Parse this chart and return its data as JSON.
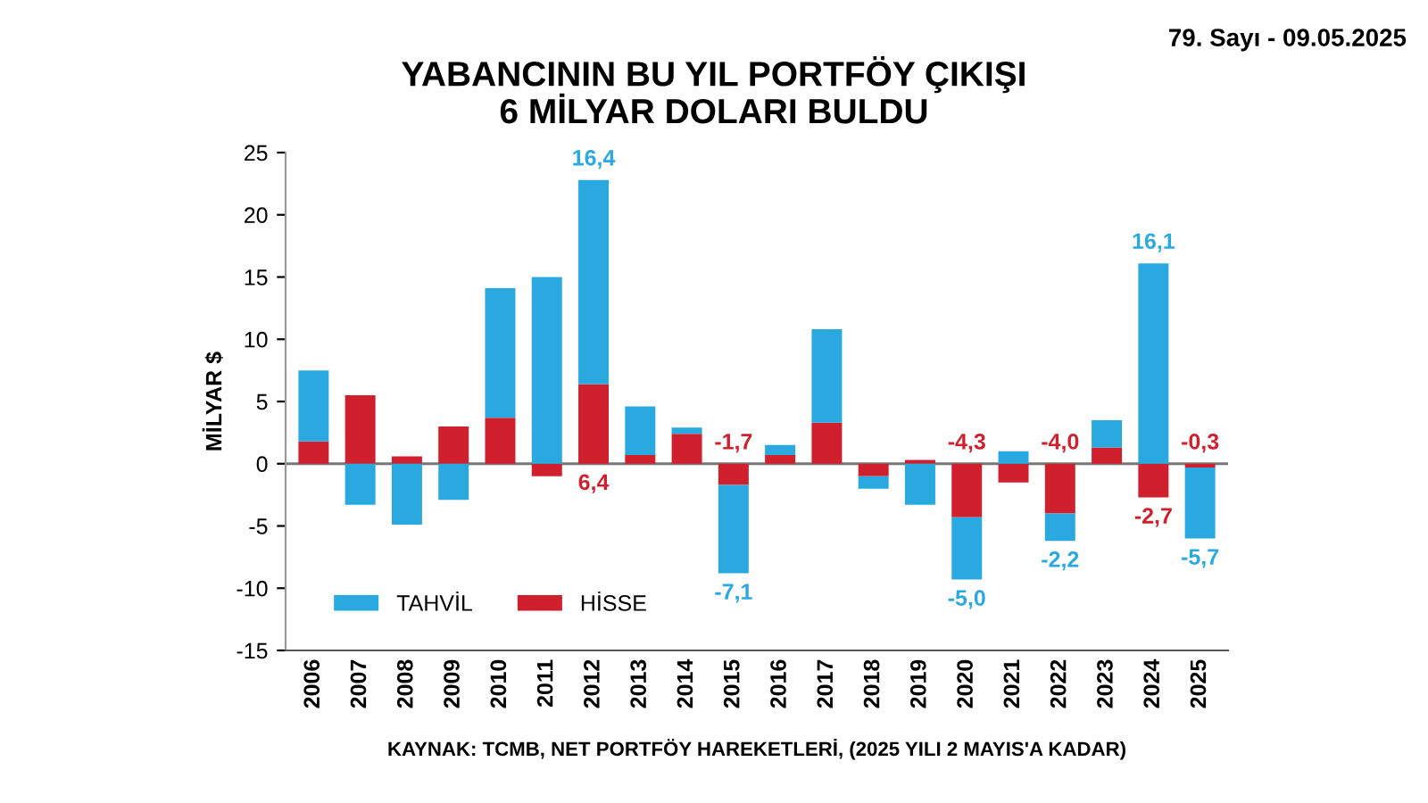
{
  "chart_data": {
    "type": "bar",
    "stacked": true,
    "title": "YABANCININ BU YIL PORTFÖY ÇIKIŞI\n6 MİLYAR DOLARI BULDU",
    "ylabel": "MİLYAR $",
    "annotations": [
      "79. Sayı - 09.05.2025",
      "KAYNAK: TCMB, NET PORTFÖY HAREKETLERİ, (2025 YILI 2 MAYIS'A KADAR)"
    ],
    "categories": [
      "2006",
      "2007",
      "2008",
      "2009",
      "2010",
      "2011",
      "2012",
      "2013",
      "2014",
      "2015",
      "2016",
      "2017",
      "2018",
      "2019",
      "2020",
      "2021",
      "2022",
      "2023",
      "2024",
      "2025"
    ],
    "series": [
      {
        "name": "HİSSE",
        "color": "#d0202e",
        "values": [
          1.8,
          5.5,
          0.6,
          3.0,
          3.7,
          -1.0,
          6.4,
          0.7,
          2.4,
          -1.7,
          0.7,
          3.3,
          -1.0,
          0.3,
          -4.3,
          -1.5,
          -4.0,
          1.3,
          -2.7,
          -0.3
        ],
        "value_labels": [
          null,
          null,
          null,
          null,
          null,
          null,
          "6,4",
          null,
          null,
          "-1,7",
          null,
          null,
          null,
          null,
          "-4,3",
          null,
          "-4,0",
          null,
          "-2,7",
          "-0,3"
        ]
      },
      {
        "name": "TAHVİL",
        "color": "#29a9e0",
        "values": [
          5.7,
          -3.3,
          -4.9,
          -2.9,
          10.4,
          15.0,
          16.4,
          3.9,
          0.5,
          -7.1,
          0.8,
          7.5,
          -1.0,
          -3.3,
          -5.0,
          1.0,
          -2.2,
          2.2,
          16.1,
          -5.7
        ],
        "value_labels": [
          null,
          null,
          null,
          null,
          null,
          null,
          "16,4",
          null,
          null,
          "-7,1",
          null,
          null,
          null,
          null,
          "-5,0",
          null,
          "-2,2",
          null,
          "16,1",
          "-5,7"
        ]
      }
    ],
    "ylim": [
      -15,
      25
    ],
    "yticks": [
      -15,
      -10,
      -5,
      0,
      5,
      10,
      15,
      20,
      25
    ],
    "ref_lines": [
      {
        "axis": "y",
        "value": 0,
        "color": "#777777"
      }
    ],
    "legend": "bottom left",
    "grid": false
  }
}
